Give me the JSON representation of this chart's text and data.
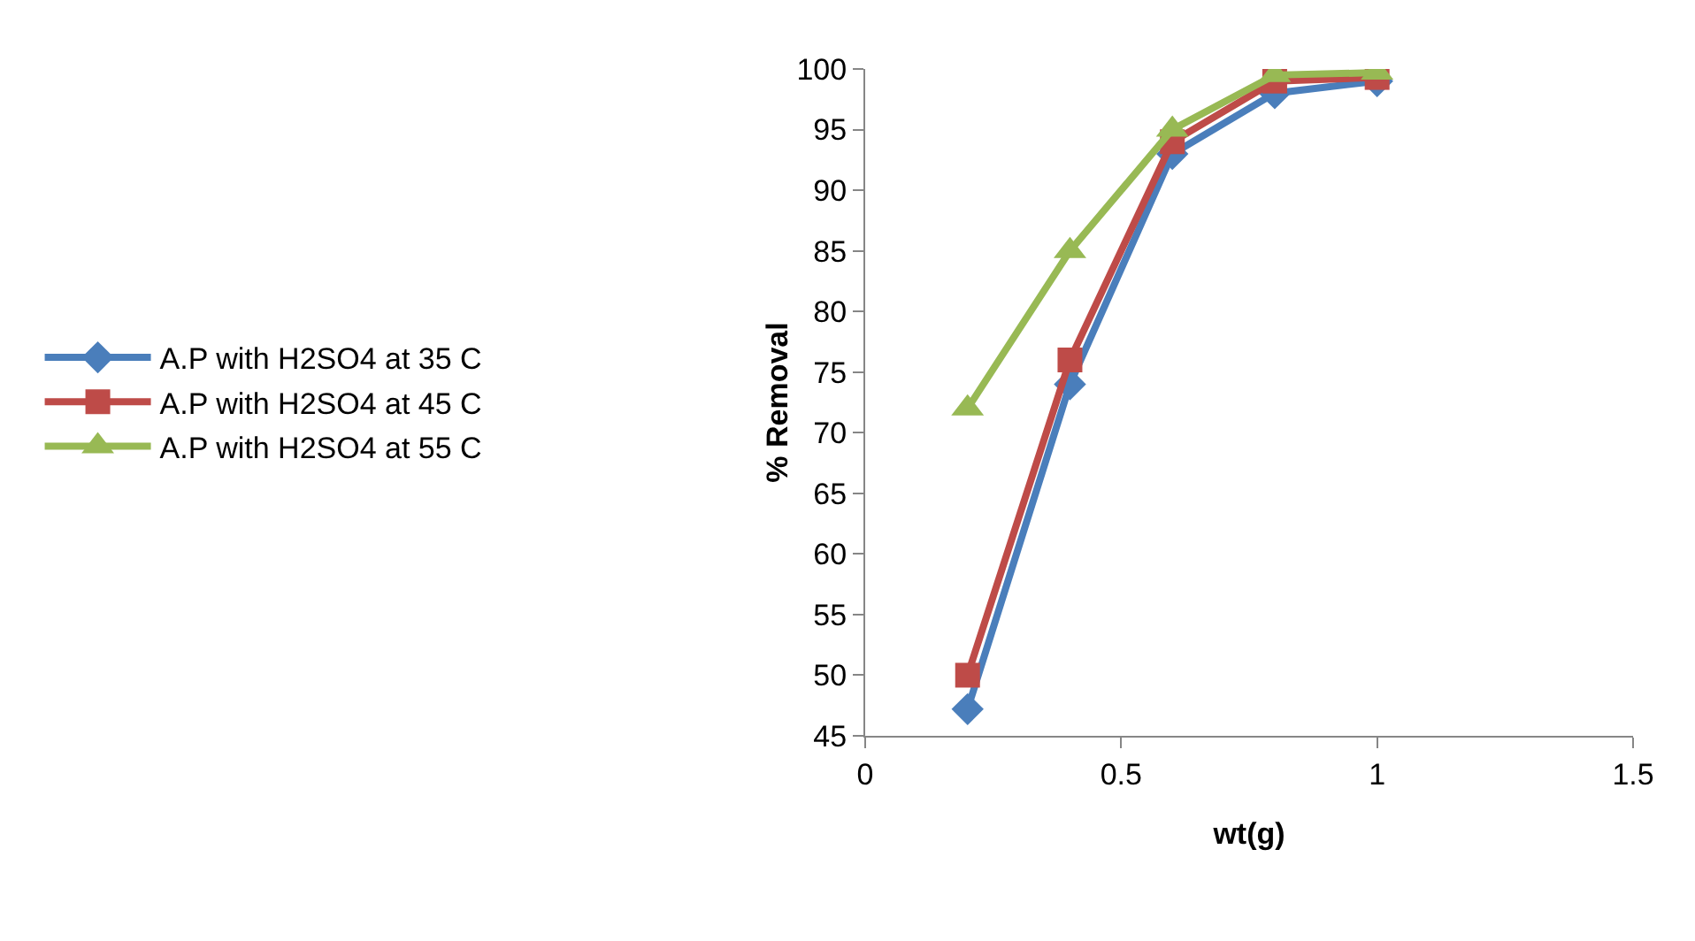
{
  "chart_data": {
    "type": "line",
    "xlabel": "wt(g)",
    "ylabel": "% Removal",
    "x": [
      0.2,
      0.4,
      0.6,
      0.8,
      1
    ],
    "xlim": [
      0,
      1.5
    ],
    "xticks": [
      0,
      0.5,
      1,
      1.5
    ],
    "ylim": [
      45,
      100
    ],
    "yticks": [
      45,
      50,
      55,
      60,
      65,
      70,
      75,
      80,
      85,
      90,
      95,
      100
    ],
    "grid": false,
    "legend": "left",
    "series": [
      {
        "name": "A.P with H2SO4 at 35 C",
        "color": "#4a7ebb",
        "marker": "diamond",
        "values": [
          47.2,
          74,
          93,
          98,
          99
        ]
      },
      {
        "name": "A.P with H2SO4 at 45 C",
        "color": "#be4b48",
        "marker": "square",
        "values": [
          50,
          76,
          94,
          99,
          99.3
        ]
      },
      {
        "name": "A.P with H2SO4 at 55 C",
        "color": "#98b954",
        "marker": "triangle",
        "values": [
          72,
          85,
          95,
          99.5,
          99.7
        ]
      }
    ]
  }
}
